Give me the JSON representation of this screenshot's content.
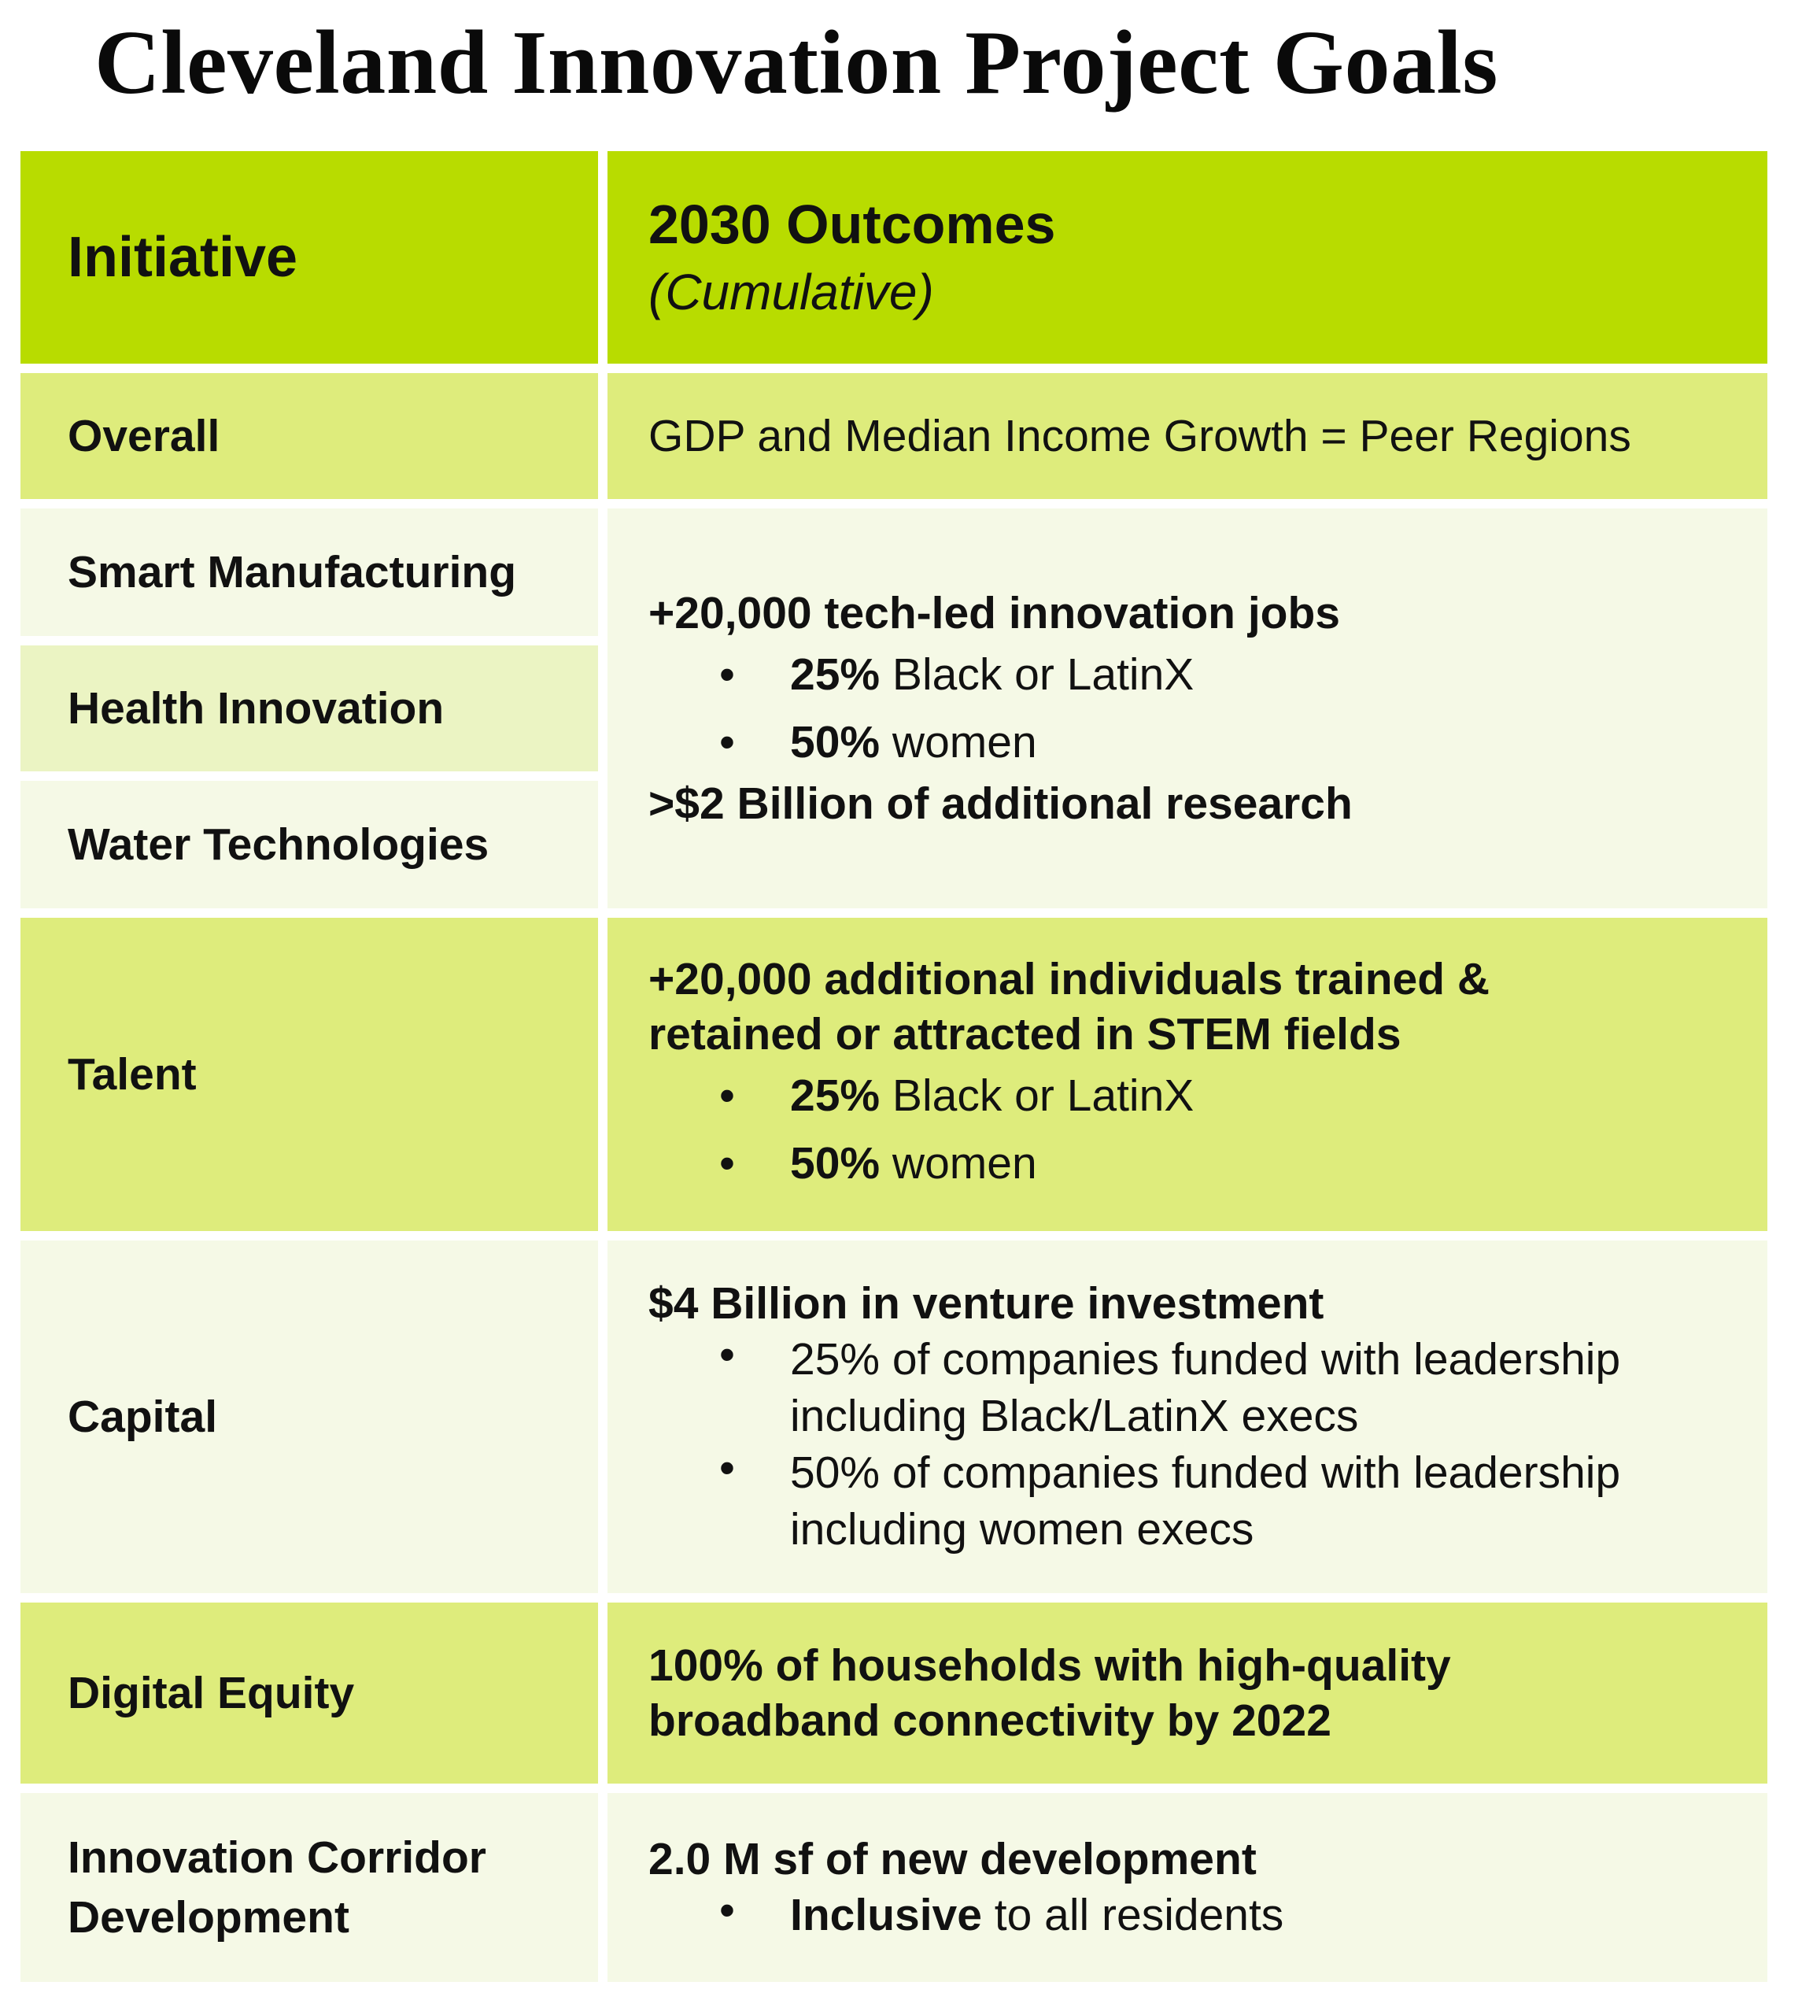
{
  "title": "Cleveland Innovation Project Goals",
  "colors": {
    "header_bg": "#b8dc00",
    "row_green": "#deec7c",
    "row_light": "#f5f9e6",
    "row_light_alt": "#ebf4c3"
  },
  "header": {
    "initiative": "Initiative",
    "outcomes": "2030 Outcomes",
    "outcomes_sub": "(Cumulative)"
  },
  "rows": {
    "overall": {
      "label": "Overall",
      "outcome": "GDP and Median Income Growth = Peer Regions"
    },
    "tech_group": {
      "labels": [
        "Smart Manufacturing",
        "Health Innovation",
        "Water Technologies"
      ],
      "headline": "+20,000 tech-led innovation jobs",
      "bullets": [
        {
          "strong": "25%",
          "text": " Black or LatinX"
        },
        {
          "strong": "50%",
          "text": " women"
        }
      ],
      "footer": ">$2 Billion of additional research"
    },
    "talent": {
      "label": "Talent",
      "headline_1": "+20,000 additional individuals trained &",
      "headline_2": "retained or attracted in STEM fields",
      "bullets": [
        {
          "strong": "25%",
          "text": " Black or LatinX"
        },
        {
          "strong": "50%",
          "text": " women"
        }
      ]
    },
    "capital": {
      "label": "Capital",
      "headline": "$4 Billion in venture investment",
      "bullets": [
        {
          "line_1": "25% of companies funded with leadership",
          "line_2": "including Black/LatinX execs"
        },
        {
          "line_1": "50% of companies funded with leadership",
          "line_2": "including women execs"
        }
      ]
    },
    "digital_equity": {
      "label": "Digital Equity",
      "headline_1": "100% of households with high-quality",
      "headline_2": "broadband connectivity by 2022"
    },
    "corridor": {
      "label_1": "Innovation Corridor",
      "label_2": "Development",
      "headline": "2.0 M sf of new development",
      "bullet": {
        "strong": "Inclusive",
        "text": " to all residents"
      }
    }
  }
}
